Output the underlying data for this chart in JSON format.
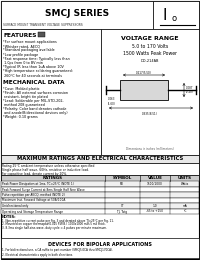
{
  "title": "SMCJ SERIES",
  "subtitle": "SURFACE MOUNT TRANSIENT VOLTAGE SUPPRESSORS",
  "voltage_range_title": "VOLTAGE RANGE",
  "voltage_range": "5.0 to 170 Volts",
  "peak_power": "1500 Watts Peak Power",
  "features_title": "FEATURES",
  "mech_title": "MECHANICAL DATA",
  "max_ratings_title": "MAXIMUM RATINGS AND ELECTRICAL CHARACTERISTICS",
  "ratings_note1": "Rating 25°C ambient temperature unless otherwise specified.",
  "ratings_note2": "Single phase half wave, 60Hz, resistive or inductive load.",
  "ratings_note3": "For capacitive load, derate current by 20%.",
  "bipolar_title": "DEVICES FOR BIPOLAR APPLICATIONS",
  "bg_color": "#ffffff"
}
